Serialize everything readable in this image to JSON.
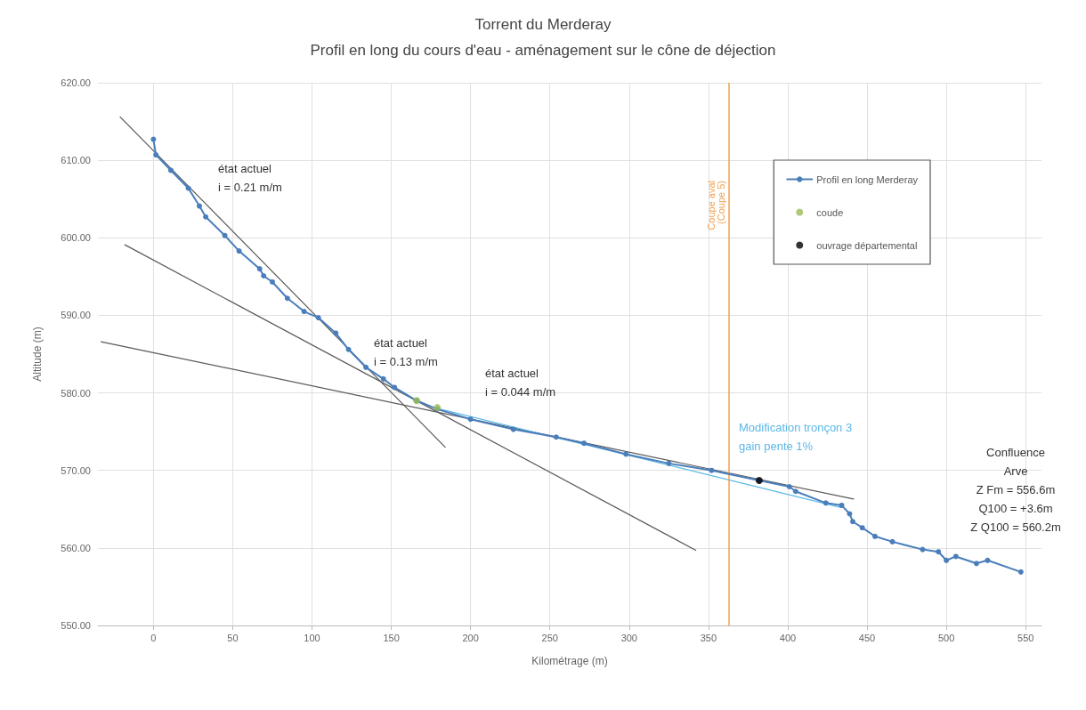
{
  "chart_data": {
    "type": "line",
    "title": "Torrent du Merderay",
    "subtitle": "Profil en long du cours d'eau - aménagement sur le cône de déjection",
    "xlabel": "Kilométrage (m)",
    "ylabel": "Altitude (m)",
    "xlim": [
      -35,
      560
    ],
    "xticks": [
      0,
      50,
      100,
      150,
      200,
      250,
      300,
      350,
      400,
      450,
      500,
      550
    ],
    "ylim": [
      550,
      620
    ],
    "yticks": [
      {
        "value": 550,
        "label": "550.00"
      },
      {
        "value": 560,
        "label": "560.00"
      },
      {
        "value": 570,
        "label": "570.00"
      },
      {
        "value": 580,
        "label": "580.00"
      },
      {
        "value": 590,
        "label": "590.00"
      },
      {
        "value": 600,
        "label": "600.00"
      },
      {
        "value": 610,
        "label": "610.00"
      },
      {
        "value": 620,
        "label": "620.00"
      }
    ],
    "grid": true,
    "legend": "top right",
    "marker": "circle",
    "line_style": "solid",
    "series": [
      {
        "name": "Profil en long Merderay",
        "color": "#4a7ebb",
        "x": [
          0,
          1.6,
          11,
          22,
          29,
          33,
          45,
          54,
          67,
          69.5,
          75,
          84.5,
          95,
          104,
          115,
          123,
          134,
          145,
          152,
          166,
          179,
          200,
          227,
          254,
          271.5,
          298,
          325,
          352,
          382,
          401,
          405,
          424,
          434,
          439,
          441,
          447,
          455,
          466,
          485,
          495,
          500,
          506,
          519,
          526,
          547
        ],
        "values": [
          612.7,
          610.7,
          608.7,
          606.4,
          604.1,
          602.7,
          600.3,
          598.3,
          596.0,
          595.1,
          594.3,
          592.2,
          590.5,
          589.7,
          587.7,
          585.6,
          583.3,
          581.8,
          580.7,
          579.0,
          577.9,
          576.6,
          575.3,
          574.3,
          573.5,
          572.1,
          570.9,
          570.0,
          568.7,
          567.9,
          567.3,
          565.8,
          565.5,
          564.4,
          563.4,
          562.6,
          561.5,
          560.8,
          559.8,
          559.5,
          558.4,
          558.9,
          558.0,
          558.4,
          556.9
        ]
      },
      {
        "name": "coude",
        "type": "scatter",
        "color": "#9bbb59",
        "x": [
          166,
          179
        ],
        "values": [
          579.0,
          578.1
        ]
      },
      {
        "name": "ouvrage départemental",
        "type": "scatter",
        "color": "#000000",
        "x": [
          382
        ],
        "values": [
          568.7
        ]
      },
      {
        "type": "line",
        "color": "#595959",
        "marker": "none",
        "x": [
          -21,
          184
        ],
        "values": [
          615.6,
          573.0
        ]
      },
      {
        "type": "line",
        "color": "#595959",
        "marker": "none",
        "x": [
          -18,
          342
        ],
        "values": [
          599.1,
          559.7
        ]
      },
      {
        "type": "line",
        "color": "#595959",
        "marker": "none",
        "x": [
          -33,
          441.5
        ],
        "values": [
          586.6,
          566.3
        ]
      },
      {
        "type": "line",
        "color": "#5bb8e6",
        "marker": "none",
        "x": [
          179,
          434
        ],
        "values": [
          578.0,
          565.2
        ]
      }
    ],
    "ref_lines": [
      {
        "axis": "x",
        "value": 363,
        "label": "Coupe aval\n(Coupe 5)",
        "color": "#f0a050"
      }
    ],
    "annotations": [
      "état actuel\ni = 0.21 m/m",
      "état actuel\ni = 0.13 m/m",
      "état actuel\ni = 0.044 m/m",
      "Modification tronçon 3\ngain pente 1%",
      "Confluence\nArve\nZ Fm = 556.6m\nQ100 = +3.6m\nZ Q100 = 560.2m"
    ]
  }
}
